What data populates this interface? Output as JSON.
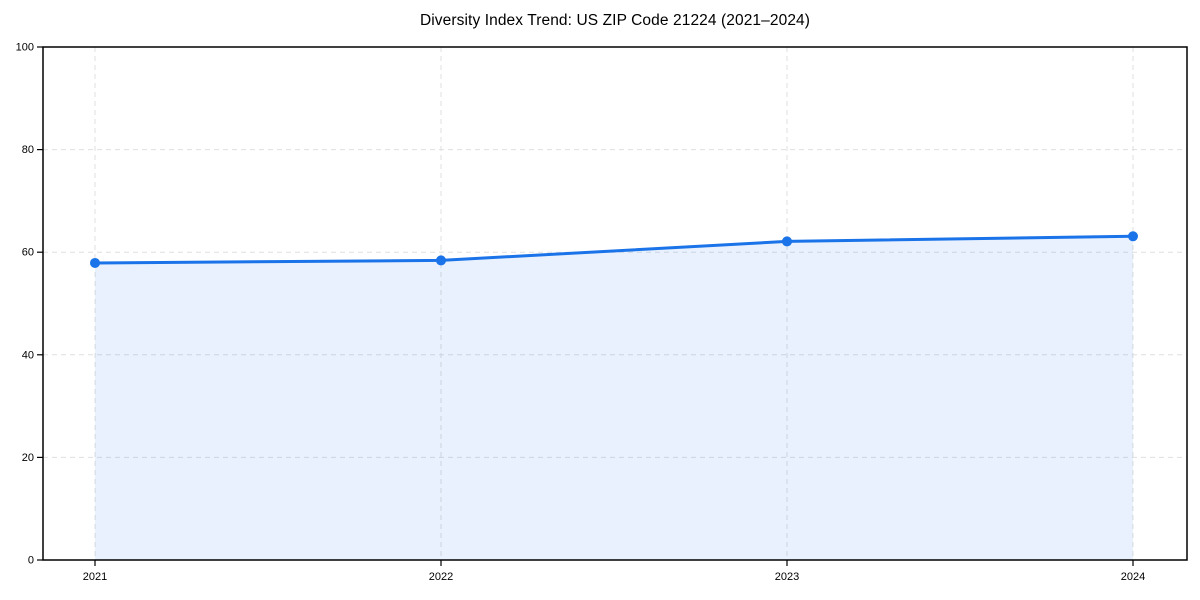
{
  "chart_data": {
    "type": "line",
    "title": "Diversity Index Trend: US ZIP Code 21224 (2021–2024)",
    "x": [
      2021,
      2022,
      2023,
      2024
    ],
    "xticks": [
      "2021",
      "2022",
      "2023",
      "2024"
    ],
    "series": [
      {
        "name": "Diversity Index",
        "values": [
          57.9,
          58.4,
          62.1,
          63.1
        ]
      }
    ],
    "xlabel": "",
    "ylabel": "",
    "ylim": [
      0,
      100
    ],
    "yticks": [
      0,
      20,
      40,
      60,
      80,
      100
    ],
    "grid": true,
    "grid_style": "dashed",
    "legend_position": "none",
    "area_fill": true,
    "marker": "circle",
    "colors": {
      "line": "#1a73e8",
      "fill": "rgba(26,115,232,0.10)",
      "marker": "#1a73e8",
      "grid": "#dfdfdf",
      "spine": "#000000",
      "tick_text": "#000000",
      "background": "#ffffff"
    }
  }
}
